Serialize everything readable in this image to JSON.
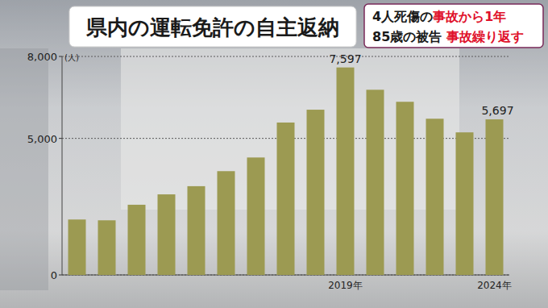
{
  "chart_data": {
    "type": "bar",
    "title": "県内の運転免許の自主返納",
    "annotations": [
      [
        {
          "text": "4人死傷の"
        },
        {
          "text": "事故から1年",
          "color": "#e0102a"
        }
      ],
      [
        {
          "text": "85歳の被告 "
        },
        {
          "text": "事故繰り返す",
          "color": "#e0102a"
        }
      ]
    ],
    "y_label": "(人)",
    "categories": [
      null,
      null,
      null,
      null,
      null,
      null,
      null,
      null,
      null,
      "2019年",
      null,
      null,
      null,
      null,
      "2024年"
    ],
    "values": [
      2030,
      2000,
      2570,
      2950,
      3250,
      3800,
      4300,
      5580,
      6050,
      7597,
      6780,
      6340,
      5720,
      5220,
      5697
    ],
    "value_labels": [
      null,
      null,
      null,
      null,
      null,
      null,
      null,
      null,
      null,
      "7,597",
      null,
      null,
      null,
      null,
      "5,697"
    ],
    "data_labels": true,
    "color": "#9c9a52",
    "ylim": [
      0,
      8000
    ],
    "yticks": [
      0,
      {
        "value": 5000,
        "label": "5,000"
      },
      {
        "value": 8000,
        "label": "8,000"
      }
    ],
    "grid": true
  }
}
